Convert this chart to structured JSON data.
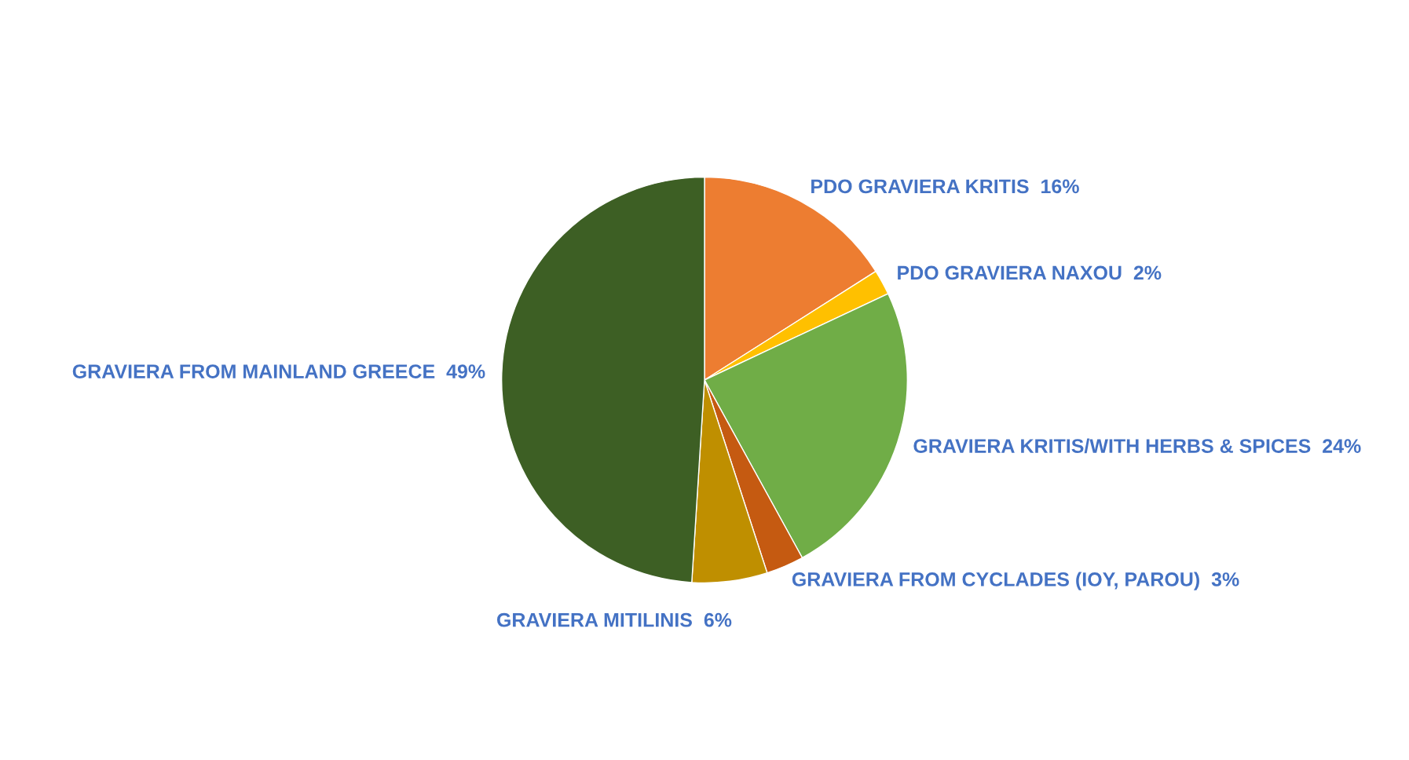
{
  "chart_data": {
    "type": "pie",
    "categories": [
      "PDO GRAVIERA KRITIS",
      "PDO GRAVIERA NAXOU",
      "GRAVIERA KRITIS/WITH HERBS & SPICES",
      "GRAVIERA FROM CYCLADES (IOY, PAROU)",
      "GRAVIERA MITILINIS",
      "GRAVIERA FROM MAINLAND GREECE"
    ],
    "values": [
      16,
      2,
      24,
      3,
      6,
      49
    ],
    "value_labels": [
      "16%",
      "2%",
      "24%",
      "3%",
      "6%",
      "49%"
    ],
    "colors": [
      "#ed7d31",
      "#ffc000",
      "#70ad47",
      "#c55a11",
      "#bf8f00",
      "#3d5f24"
    ]
  }
}
